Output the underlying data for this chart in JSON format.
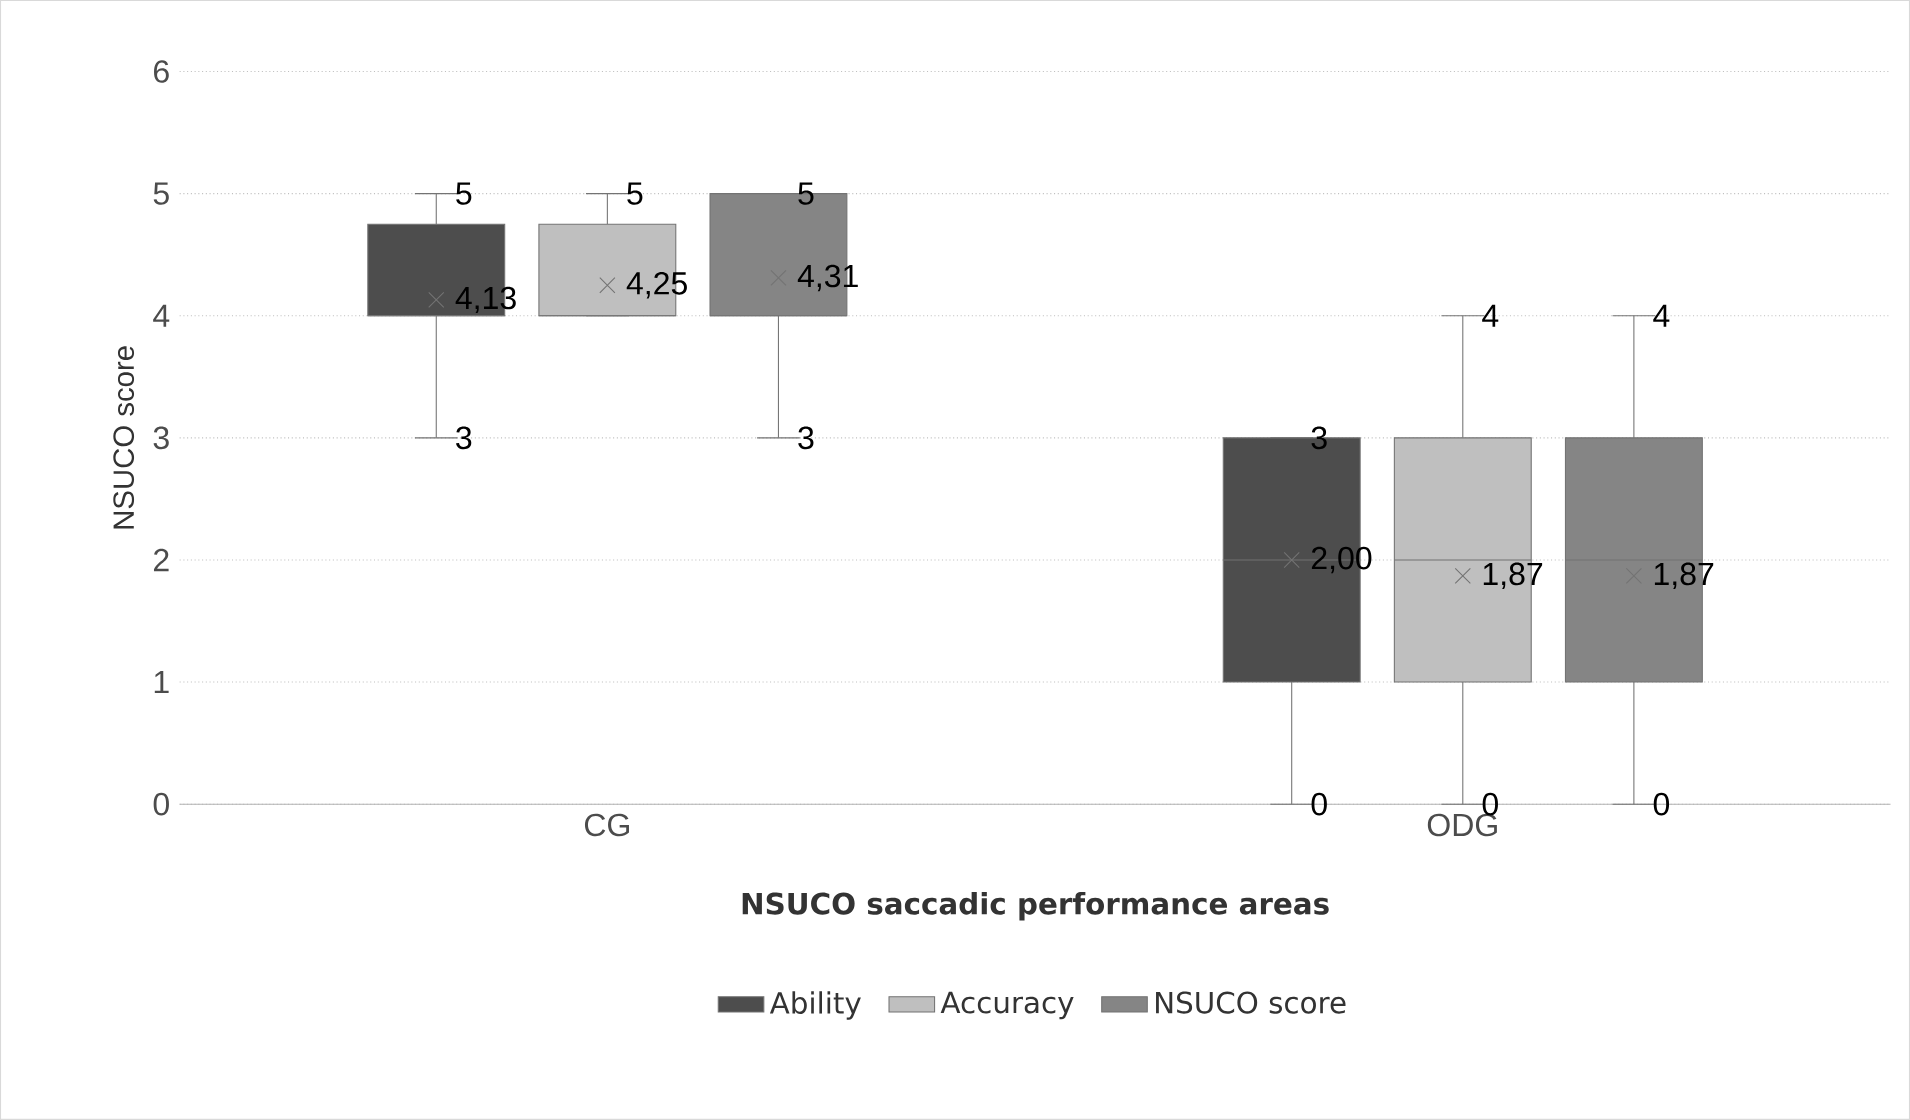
{
  "chart_data": {
    "type": "box",
    "xlabel": "NSUCO saccadic performance areas",
    "ylabel": "NSUCO score",
    "categories": [
      "CG",
      "ODG"
    ],
    "ylim": [
      0,
      6
    ],
    "yticks": [
      0,
      1,
      2,
      3,
      4,
      5,
      6
    ],
    "grid": "y",
    "legend": "bottom",
    "marker": "cross",
    "series": [
      {
        "name": "Ability",
        "color": "#4d4d4d",
        "boxes": [
          {
            "low": 3,
            "q1": 4,
            "median": 4,
            "q3": 4.75,
            "high": 5,
            "mean": 4.13
          },
          {
            "low": 0,
            "q1": 1,
            "median": 2,
            "q3": 3,
            "high": 3,
            "mean": 2.0
          }
        ]
      },
      {
        "name": "Accuracy",
        "color": "#bfbfbf",
        "boxes": [
          {
            "low": 4,
            "q1": 4,
            "median": 4,
            "q3": 4.75,
            "high": 5,
            "mean": 4.25
          },
          {
            "low": 0,
            "q1": 1,
            "median": 2,
            "q3": 3,
            "high": 4,
            "mean": 1.87
          }
        ]
      },
      {
        "name": "NSUCO score",
        "color": "#858585",
        "boxes": [
          {
            "low": 3,
            "q1": 4,
            "median": 4,
            "q3": 5,
            "high": 5,
            "mean": 4.31
          },
          {
            "low": 0,
            "q1": 1,
            "median": 2,
            "q3": 3,
            "high": 4,
            "mean": 1.87
          }
        ]
      }
    ],
    "annotations": [
      "5",
      "3",
      "4,13",
      "3",
      "0",
      "2,00",
      "5",
      "4,25",
      "4",
      "0",
      "1,87",
      "5",
      "3",
      "4,31",
      "4",
      "0",
      "1,87"
    ]
  }
}
